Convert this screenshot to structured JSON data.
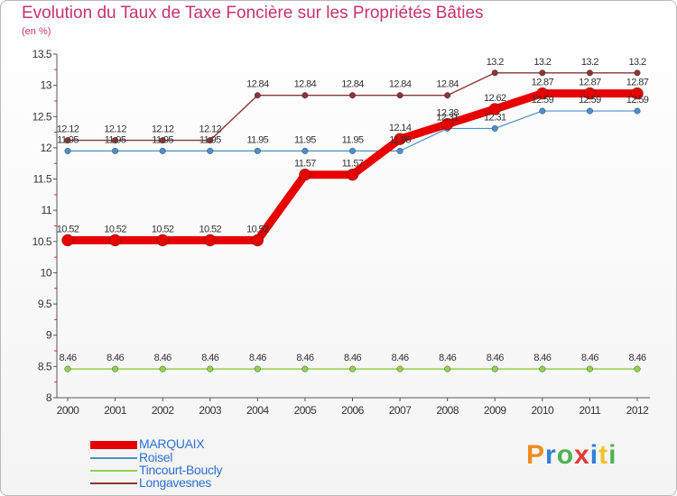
{
  "title": "Evolution du Taux de Taxe Foncière sur les Propriétés Bâties",
  "unit_label": "(en %)",
  "logo": {
    "letters": [
      "P",
      "r",
      "o",
      "x",
      "i",
      "t",
      "i"
    ]
  },
  "chart_data": {
    "type": "line",
    "title": "Evolution du Taux de Taxe Foncière sur les Propriétés Bâties",
    "ylabel": "(en %)",
    "xlabel": "",
    "x": [
      "2000",
      "2001",
      "2002",
      "2003",
      "2004",
      "2005",
      "2006",
      "2007",
      "2008",
      "2009",
      "2010",
      "2011",
      "2012"
    ],
    "ylim": [
      8,
      13.5
    ],
    "yticks": [
      "8",
      "8.5",
      "9",
      "9.5",
      "10",
      "10.5",
      "11",
      "11.5",
      "12",
      "12.5",
      "13",
      "13.5"
    ],
    "grid": false,
    "legend_position": "bottom-left",
    "series": [
      {
        "name": "Longavesnes",
        "color": "#8b3535",
        "values": [
          12.12,
          12.12,
          12.12,
          12.12,
          12.84,
          12.84,
          12.84,
          12.84,
          12.84,
          13.2,
          13.2,
          13.2,
          13.2
        ],
        "labels": [
          "12.12",
          "12.12",
          "12.12",
          "12.12",
          "12.84",
          "12.84",
          "12.84",
          "12.84",
          "12.84",
          "13.2",
          "13.2",
          "13.2",
          "13.2"
        ]
      },
      {
        "name": "Roisel",
        "color": "#4a8fcb",
        "values": [
          11.95,
          11.95,
          11.95,
          11.95,
          11.95,
          11.95,
          11.95,
          11.95,
          12.31,
          12.31,
          12.59,
          12.59,
          12.59
        ],
        "labels": [
          "11.95",
          "11.95",
          "11.95",
          "11.95",
          "11.95",
          "11.95",
          "11.95",
          "11.95",
          "12.31",
          "12.31",
          "12.59",
          "12.59",
          "12.59"
        ]
      },
      {
        "name": "Tincourt-Boucly",
        "color": "#8fd14f",
        "values": [
          8.46,
          8.46,
          8.46,
          8.46,
          8.46,
          8.46,
          8.46,
          8.46,
          8.46,
          8.46,
          8.46,
          8.46,
          8.46
        ],
        "labels": [
          "8.46",
          "8.46",
          "8.46",
          "8.46",
          "8.46",
          "8.46",
          "8.46",
          "8.46",
          "8.46",
          "8.46",
          "8.46",
          "8.46",
          "8.46"
        ]
      },
      {
        "name": "MARQUAIX",
        "color": "#e60000",
        "values": [
          10.52,
          10.52,
          10.52,
          10.52,
          10.52,
          11.57,
          11.57,
          12.14,
          12.38,
          12.62,
          12.87,
          12.87,
          12.87
        ],
        "labels": [
          "10.52",
          "10.52",
          "10.52",
          "10.52",
          "10.52",
          "11.57",
          "11.57",
          "12.14",
          "12.38",
          "12.62",
          "12.87",
          "12.87",
          "12.87"
        ]
      }
    ],
    "legend_order": [
      "MARQUAIX",
      "Roisel",
      "Tincourt-Boucly",
      "Longavesnes"
    ]
  }
}
